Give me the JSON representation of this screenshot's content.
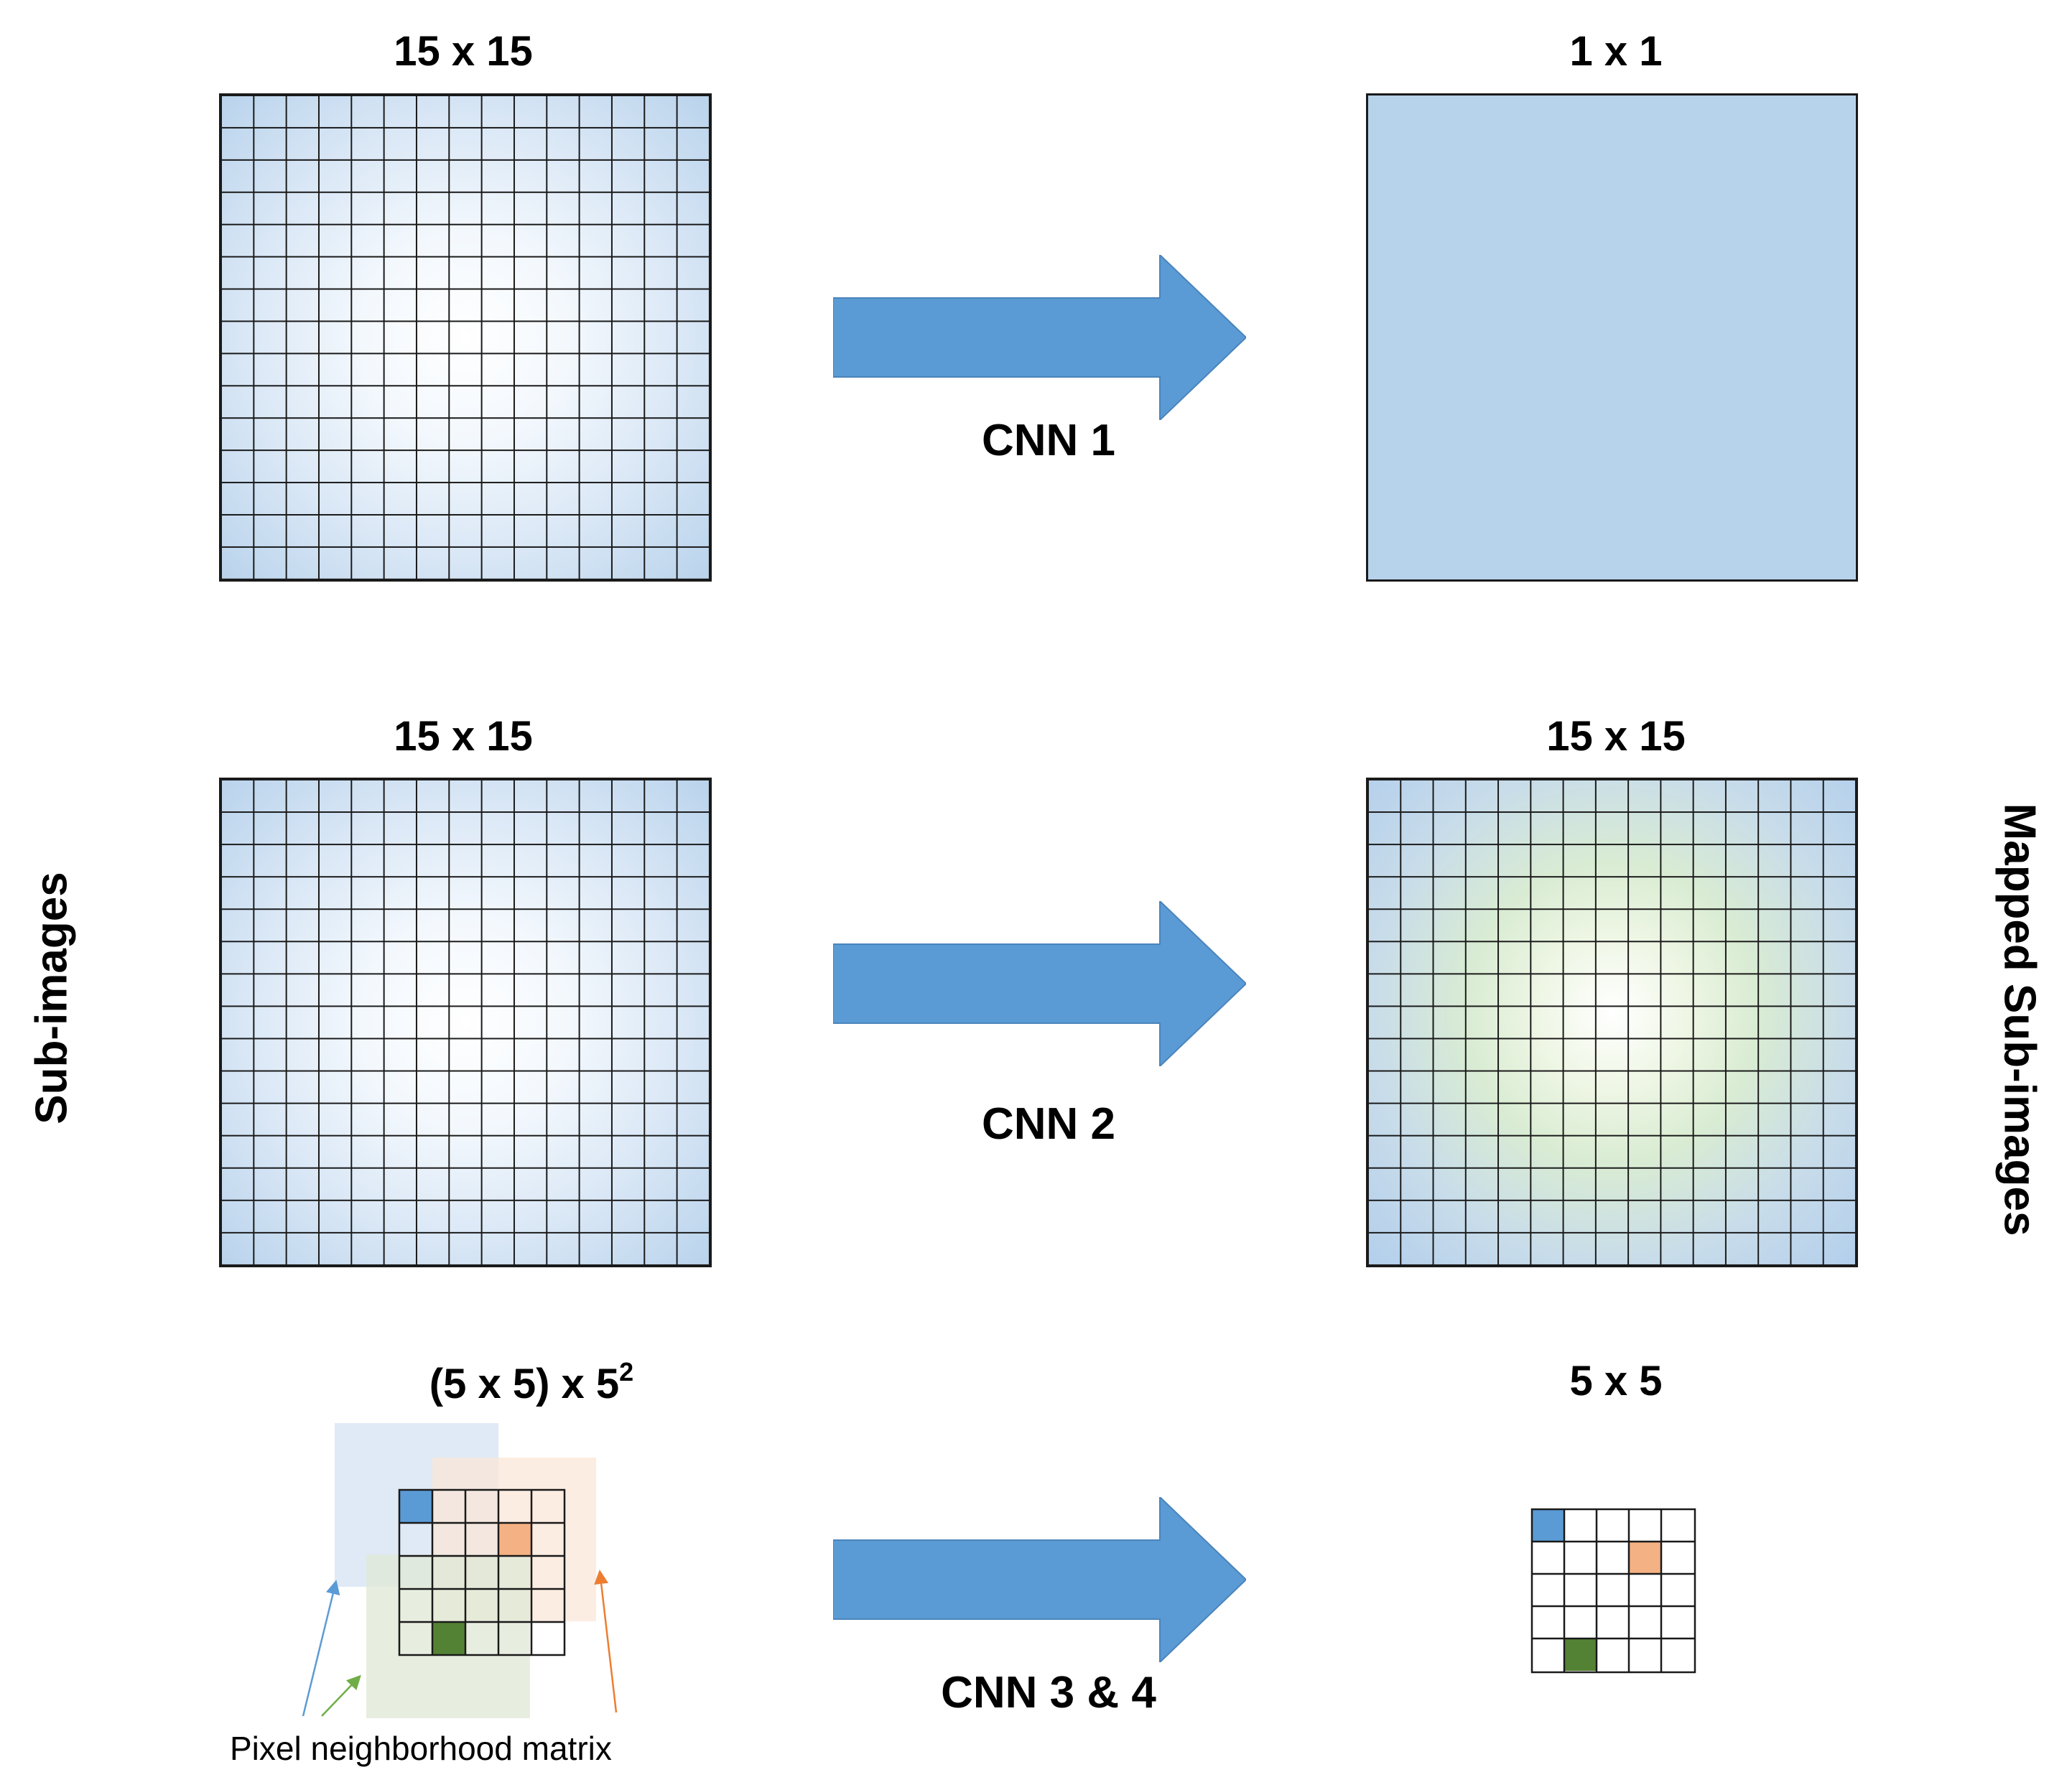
{
  "rows": [
    {
      "left_title": "15 x 15",
      "right_title": "1 x 1",
      "cnn_label": "CNN 1"
    },
    {
      "left_title": "15 x 15",
      "right_title": "15 x 15",
      "cnn_label": "CNN 2"
    },
    {
      "left_title_main": "(5 x 5) x 5",
      "left_title_sup": "2",
      "right_title": "5 x 5",
      "cnn_label": "CNN 3 & 4"
    }
  ],
  "side_labels": {
    "left": "Sub-images",
    "right": "Mapped Sub-images"
  },
  "neighborhood_caption": "Pixel neighborhood matrix",
  "colors": {
    "arrow": "#5b9bd5",
    "pixel_blue": "#5b9bd5",
    "pixel_orange": "#f4b183",
    "pixel_green": "#548235",
    "patch_blue": "#dae6f4",
    "patch_orange": "#fbe5d6",
    "patch_green": "#dfe8d6"
  }
}
